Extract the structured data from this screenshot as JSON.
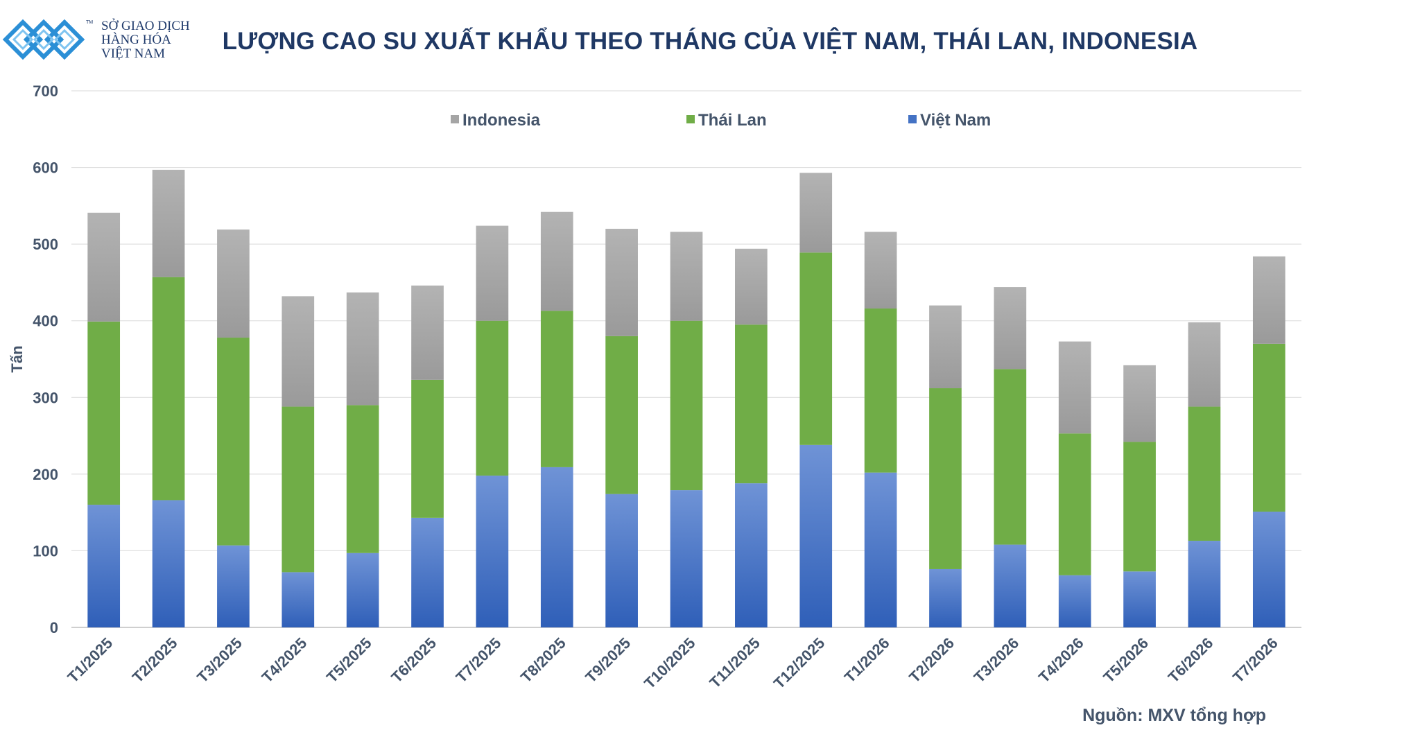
{
  "logo": {
    "line1": "SỞ GIAO DỊCH",
    "line2": "HÀNG HÓA",
    "line3": "VIỆT NAM",
    "tm": "TM"
  },
  "title": "LƯỢNG CAO SU XUẤT KHẨU THEO THÁNG CỦA VIỆT NAM, THÁI LAN, INDONESIA",
  "source": "Nguồn: MXV tổng hợp",
  "colors": {
    "vietnam": "#4472c4",
    "thailand": "#70ad47",
    "indonesia": "#a5a5a5",
    "text": "#44546a",
    "title": "#1f3864"
  },
  "chart_data": {
    "type": "bar",
    "stacked": true,
    "title": "LƯỢNG CAO SU XUẤT KHẨU THEO THÁNG CỦA VIỆT NAM, THÁI LAN, INDONESIA",
    "xlabel": "",
    "ylabel": "Tấn",
    "ylim": [
      0,
      700
    ],
    "yticks": [
      0,
      100,
      200,
      300,
      400,
      500,
      600,
      700
    ],
    "grid": true,
    "legend_position": "top",
    "legend_order": [
      "Indonesia",
      "Thái Lan",
      "Việt Nam"
    ],
    "categories": [
      "T1/2025",
      "T2/2025",
      "T3/2025",
      "T4/2025",
      "T5/2025",
      "T6/2025",
      "T7/2025",
      "T8/2025",
      "T9/2025",
      "T10/2025",
      "T11/2025",
      "T12/2025",
      "T1/2026",
      "T2/2026",
      "T3/2026",
      "T4/2026",
      "T5/2026",
      "T6/2026",
      "T7/2026"
    ],
    "series": [
      {
        "name": "Việt Nam",
        "color": "#4472c4",
        "values": [
          160,
          166,
          107,
          72,
          97,
          143,
          198,
          209,
          174,
          179,
          188,
          238,
          202,
          76,
          108,
          68,
          73,
          113,
          151
        ]
      },
      {
        "name": "Thái Lan",
        "color": "#70ad47",
        "values": [
          239,
          291,
          271,
          216,
          193,
          180,
          202,
          204,
          206,
          221,
          207,
          251,
          214,
          236,
          229,
          185,
          169,
          175,
          219
        ]
      },
      {
        "name": "Indonesia",
        "color": "#a5a5a5",
        "values": [
          142,
          140,
          141,
          144,
          147,
          123,
          124,
          129,
          140,
          116,
          99,
          104,
          100,
          108,
          107,
          120,
          100,
          110,
          114
        ]
      }
    ]
  }
}
